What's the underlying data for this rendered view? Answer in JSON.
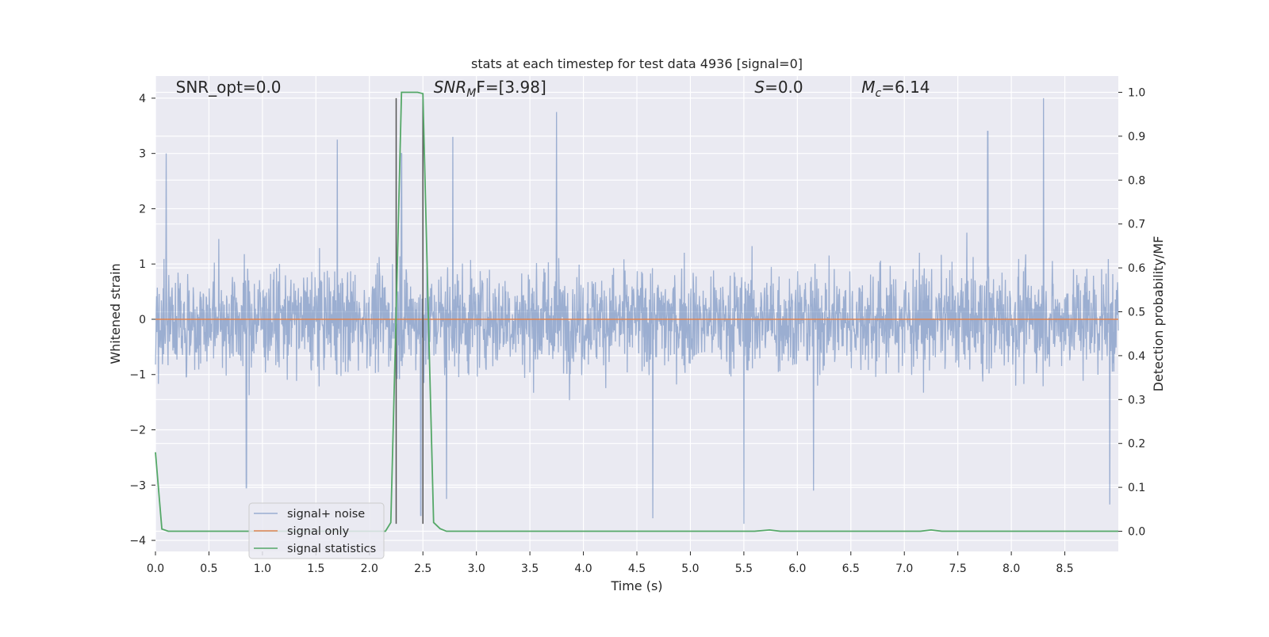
{
  "chart_data": {
    "type": "line",
    "title": "stats at each timestep for test data 4936 [signal=0]",
    "xlabel": "Time (s)",
    "ylabel": "Whitened strain",
    "ylabel_right": "Detection probability/MF",
    "xlim": [
      0.0,
      9.0
    ],
    "ylim": [
      -4.2,
      4.4
    ],
    "ylim_right": [
      -0.046,
      1.037
    ],
    "x_ticks": [
      0.0,
      0.5,
      1.0,
      1.5,
      2.0,
      2.5,
      3.0,
      3.5,
      4.0,
      4.5,
      5.0,
      5.5,
      6.0,
      6.5,
      7.0,
      7.5,
      8.0,
      8.5
    ],
    "x_tick_labels": [
      "0.0",
      "0.5",
      "1.0",
      "1.5",
      "2.0",
      "2.5",
      "3.0",
      "3.5",
      "4.0",
      "4.5",
      "5.0",
      "5.5",
      "6.0",
      "6.5",
      "7.0",
      "7.5",
      "8.0",
      "8.5"
    ],
    "y_ticks": [
      -4,
      -3,
      -2,
      -1,
      0,
      1,
      2,
      3,
      4
    ],
    "y_tick_labels": [
      "−4",
      "−3",
      "−2",
      "−1",
      "0",
      "1",
      "2",
      "3",
      "4"
    ],
    "y_ticks_right": [
      0.0,
      0.1,
      0.2,
      0.3,
      0.4,
      0.5,
      0.6,
      0.7,
      0.8,
      0.9,
      1.0
    ],
    "y_tick_labels_right": [
      "0.0",
      "0.1",
      "0.2",
      "0.3",
      "0.4",
      "0.5",
      "0.6",
      "0.7",
      "0.8",
      "0.9",
      "1.0"
    ],
    "grid": true,
    "legend_position": "lower-left",
    "annotations": [
      {
        "x": 0.19,
        "y": 4.1,
        "text": "SNR_opt=0.0",
        "style": "normal"
      },
      {
        "x": 2.6,
        "y": 4.1,
        "text": "SNR",
        "sub": "M",
        "suffix": "F=[3.98]",
        "style": "italic"
      },
      {
        "x": 5.6,
        "y": 4.1,
        "text": "S",
        "sub": "",
        "suffix": "=0.0",
        "style": "italic"
      },
      {
        "x": 6.6,
        "y": 4.1,
        "text": "M",
        "sub": "c",
        "suffix": "=6.14",
        "style": "italic"
      }
    ],
    "vlines": [
      {
        "x": 2.25,
        "y0": -3.7,
        "y1": 4.0
      },
      {
        "x": 2.5,
        "y0": -3.7,
        "y1": 4.0
      }
    ],
    "series": [
      {
        "name": "signal+ noise",
        "color": "#4c72b0",
        "alpha": 0.5,
        "kind": "noise",
        "duration": 9.0,
        "typical_abs_max": 1.7,
        "peaks": [
          {
            "x": 0.1,
            "y": 3.0
          },
          {
            "x": 0.85,
            "y": -3.05
          },
          {
            "x": 1.7,
            "y": 3.25
          },
          {
            "x": 2.3,
            "y": 3.0
          },
          {
            "x": 2.48,
            "y": -3.55
          },
          {
            "x": 2.78,
            "y": 3.3
          },
          {
            "x": 3.75,
            "y": 3.75
          },
          {
            "x": 4.65,
            "y": -3.6
          },
          {
            "x": 5.5,
            "y": -3.7
          },
          {
            "x": 6.15,
            "y": -3.1
          },
          {
            "x": 7.78,
            "y": 3.4
          },
          {
            "x": 8.3,
            "y": 4.0
          },
          {
            "x": 8.92,
            "y": -3.35
          },
          {
            "x": 2.72,
            "y": -3.25
          }
        ]
      },
      {
        "name": "signal only",
        "color": "#dd8452",
        "x": [
          0.0,
          9.0
        ],
        "y": [
          0.0,
          0.0
        ]
      },
      {
        "name": "signal statistics",
        "color": "#55a868",
        "axis": "right",
        "x": [
          0.0,
          0.06,
          0.12,
          0.2,
          1.0,
          2.0,
          2.15,
          2.2,
          2.25,
          2.3,
          2.35,
          2.4,
          2.45,
          2.5,
          2.55,
          2.6,
          2.66,
          2.72,
          3.0,
          4.0,
          5.0,
          5.6,
          5.74,
          5.84,
          6.0,
          7.0,
          7.15,
          7.25,
          7.35,
          8.0,
          8.9,
          9.0
        ],
        "y": [
          0.18,
          0.005,
          0.0,
          0.0,
          0.0,
          0.0,
          0.0,
          0.02,
          0.5,
          1.0,
          1.0,
          1.0,
          1.0,
          0.997,
          0.5,
          0.02,
          0.006,
          0.0,
          0.0,
          0.0,
          0.0,
          0.0,
          0.003,
          0.0,
          0.0,
          0.0,
          0.0,
          0.003,
          0.0,
          0.0,
          0.0,
          0.0
        ]
      }
    ]
  }
}
